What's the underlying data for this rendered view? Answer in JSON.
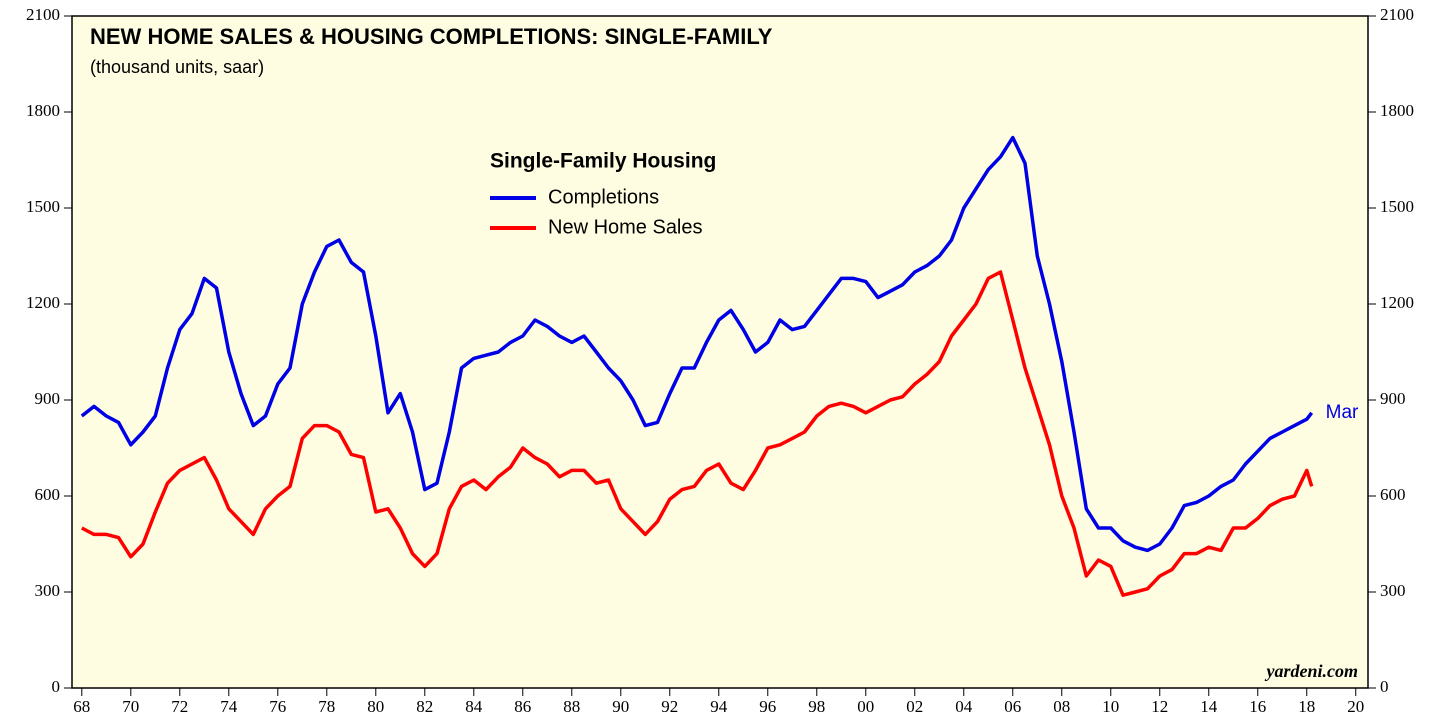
{
  "chart_data": {
    "type": "line",
    "title": "NEW HOME SALES & HOUSING COMPLETIONS: SINGLE-FAMILY",
    "subtitle": "(thousand units, saar)",
    "legend_title": "Single-Family Housing",
    "annotation": "Mar",
    "source": "yardeni.com",
    "x": [
      1968,
      1968.5,
      1969,
      1969.5,
      1970,
      1970.5,
      1971,
      1971.5,
      1972,
      1972.5,
      1973,
      1973.5,
      1974,
      1974.5,
      1975,
      1975.5,
      1976,
      1976.5,
      1977,
      1977.5,
      1978,
      1978.5,
      1979,
      1979.5,
      1980,
      1980.5,
      1981,
      1981.5,
      1982,
      1982.5,
      1983,
      1983.5,
      1984,
      1984.5,
      1985,
      1985.5,
      1986,
      1986.5,
      1987,
      1987.5,
      1988,
      1988.5,
      1989,
      1989.5,
      1990,
      1990.5,
      1991,
      1991.5,
      1992,
      1992.5,
      1993,
      1993.5,
      1994,
      1994.5,
      1995,
      1995.5,
      1996,
      1996.5,
      1997,
      1997.5,
      1998,
      1998.5,
      1999,
      1999.5,
      2000,
      2000.5,
      2001,
      2001.5,
      2002,
      2002.5,
      2003,
      2003.5,
      2004,
      2004.5,
      2005,
      2005.5,
      2006,
      2006.5,
      2007,
      2007.5,
      2008,
      2008.5,
      2009,
      2009.5,
      2010,
      2010.5,
      2011,
      2011.5,
      2012,
      2012.5,
      2013,
      2013.5,
      2014,
      2014.5,
      2015,
      2015.5,
      2016,
      2016.5,
      2017,
      2017.5,
      2018,
      2018.2
    ],
    "series": [
      {
        "name": "Completions",
        "color": "#0000e6",
        "values": [
          850,
          880,
          850,
          830,
          760,
          800,
          850,
          1000,
          1120,
          1170,
          1280,
          1250,
          1050,
          920,
          820,
          850,
          950,
          1000,
          1200,
          1300,
          1380,
          1400,
          1330,
          1300,
          1100,
          860,
          920,
          800,
          620,
          640,
          800,
          1000,
          1030,
          1040,
          1050,
          1080,
          1100,
          1150,
          1130,
          1100,
          1080,
          1100,
          1050,
          1000,
          960,
          900,
          820,
          830,
          920,
          1000,
          1000,
          1080,
          1150,
          1180,
          1120,
          1050,
          1080,
          1150,
          1120,
          1130,
          1180,
          1230,
          1280,
          1280,
          1270,
          1220,
          1240,
          1260,
          1300,
          1320,
          1350,
          1400,
          1500,
          1560,
          1620,
          1660,
          1720,
          1640,
          1350,
          1200,
          1020,
          800,
          560,
          500,
          500,
          460,
          440,
          430,
          450,
          500,
          570,
          580,
          600,
          630,
          650,
          700,
          740,
          780,
          800,
          820,
          840,
          860
        ]
      },
      {
        "name": "New Home Sales",
        "color": "#ff0000",
        "values": [
          500,
          480,
          480,
          470,
          410,
          450,
          550,
          640,
          680,
          700,
          720,
          650,
          560,
          520,
          480,
          560,
          600,
          630,
          780,
          820,
          820,
          800,
          730,
          720,
          550,
          560,
          500,
          420,
          380,
          420,
          560,
          630,
          650,
          620,
          660,
          690,
          750,
          720,
          700,
          660,
          680,
          680,
          640,
          650,
          560,
          520,
          480,
          520,
          590,
          620,
          630,
          680,
          700,
          640,
          620,
          680,
          750,
          760,
          780,
          800,
          850,
          880,
          890,
          880,
          860,
          880,
          900,
          910,
          950,
          980,
          1020,
          1100,
          1150,
          1200,
          1280,
          1300,
          1150,
          1000,
          880,
          760,
          600,
          500,
          350,
          400,
          380,
          290,
          300,
          310,
          350,
          370,
          420,
          420,
          440,
          430,
          500,
          500,
          530,
          570,
          590,
          600,
          680,
          630
        ]
      }
    ],
    "xlim": [
      1967.6,
      2020.5
    ],
    "xticks": [
      {
        "value": 1968,
        "label": "68"
      },
      {
        "value": 1970,
        "label": "70"
      },
      {
        "value": 1972,
        "label": "72"
      },
      {
        "value": 1974,
        "label": "74"
      },
      {
        "value": 1976,
        "label": "76"
      },
      {
        "value": 1978,
        "label": "78"
      },
      {
        "value": 1980,
        "label": "80"
      },
      {
        "value": 1982,
        "label": "82"
      },
      {
        "value": 1984,
        "label": "84"
      },
      {
        "value": 1986,
        "label": "86"
      },
      {
        "value": 1988,
        "label": "88"
      },
      {
        "value": 1990,
        "label": "90"
      },
      {
        "value": 1992,
        "label": "92"
      },
      {
        "value": 1994,
        "label": "94"
      },
      {
        "value": 1996,
        "label": "96"
      },
      {
        "value": 1998,
        "label": "98"
      },
      {
        "value": 2000,
        "label": "00"
      },
      {
        "value": 2002,
        "label": "02"
      },
      {
        "value": 2004,
        "label": "04"
      },
      {
        "value": 2006,
        "label": "06"
      },
      {
        "value": 2008,
        "label": "08"
      },
      {
        "value": 2010,
        "label": "10"
      },
      {
        "value": 2012,
        "label": "12"
      },
      {
        "value": 2014,
        "label": "14"
      },
      {
        "value": 2016,
        "label": "16"
      },
      {
        "value": 2018,
        "label": "18"
      },
      {
        "value": 2020,
        "label": "20"
      }
    ],
    "ylim": [
      0,
      2100
    ],
    "yticks": [
      0,
      300,
      600,
      900,
      1200,
      1500,
      1800,
      2100
    ]
  }
}
